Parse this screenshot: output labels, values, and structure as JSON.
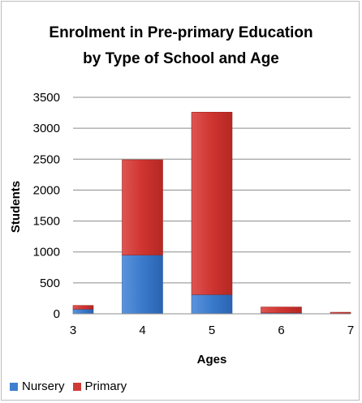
{
  "chart_data": {
    "type": "bar",
    "stacked": true,
    "title_line1": "Enrolment in Pre-primary Education",
    "title_line2": "by Type of School and Age",
    "xlabel": "Ages",
    "ylabel": "Students",
    "categories": [
      "3",
      "4",
      "5",
      "6",
      "7"
    ],
    "ylim": [
      0,
      3500
    ],
    "yticks": [
      "0",
      "500",
      "1000",
      "1500",
      "2000",
      "2500",
      "3000",
      "3500"
    ],
    "grid": true,
    "legend_position": "bottom-left",
    "series": [
      {
        "name": "Nursery",
        "values": [
          75,
          950,
          310,
          15,
          5
        ],
        "color": "#3f7fd0"
      },
      {
        "name": "Primary",
        "values": [
          60,
          1540,
          2950,
          95,
          20
        ],
        "color": "#d03b36"
      }
    ]
  }
}
